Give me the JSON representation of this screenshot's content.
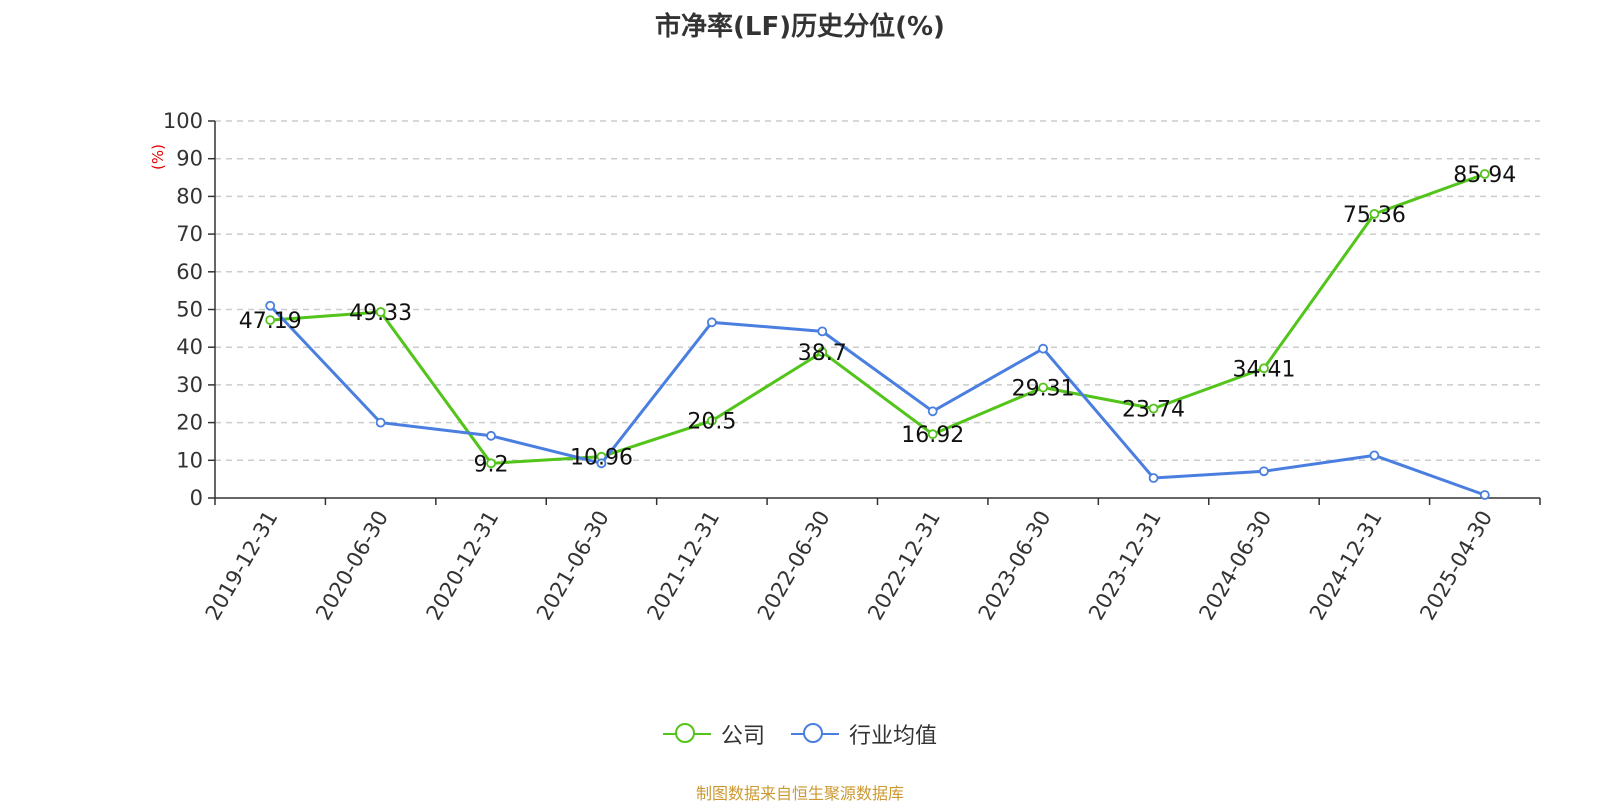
{
  "title": "市净率(LF)历史分位(%)",
  "source": "制图数据来自恒生聚源数据库",
  "colors": {
    "company": "#52c41a",
    "industry": "#4a7fe0",
    "unit": "#e60000",
    "source": "#cc9933"
  },
  "chart_data": {
    "type": "line",
    "title": "市净率(LF)历史分位(%)",
    "ylabel": "(%)",
    "ylim": [
      0,
      100
    ],
    "yticks": [
      0,
      10,
      20,
      30,
      40,
      50,
      60,
      70,
      80,
      90,
      100
    ],
    "grid": true,
    "legend_position": "bottom",
    "categories": [
      "2019-12-31",
      "2020-06-30",
      "2020-12-31",
      "2021-06-30",
      "2021-12-31",
      "2022-06-30",
      "2022-12-31",
      "2023-06-30",
      "2023-12-31",
      "2024-06-30",
      "2024-12-31",
      "2025-04-30"
    ],
    "series": [
      {
        "name": "公司",
        "color": "#52c41a",
        "show_labels": true,
        "values": [
          47.19,
          49.33,
          9.2,
          10.96,
          20.5,
          38.7,
          16.92,
          29.31,
          23.74,
          34.41,
          75.36,
          85.94
        ]
      },
      {
        "name": "行业均值",
        "color": "#4a7fe0",
        "show_labels": false,
        "values": [
          51,
          20,
          16.5,
          9.2,
          46.6,
          44.2,
          23,
          39.6,
          5.3,
          7.1,
          11.3,
          0.8
        ]
      }
    ]
  }
}
